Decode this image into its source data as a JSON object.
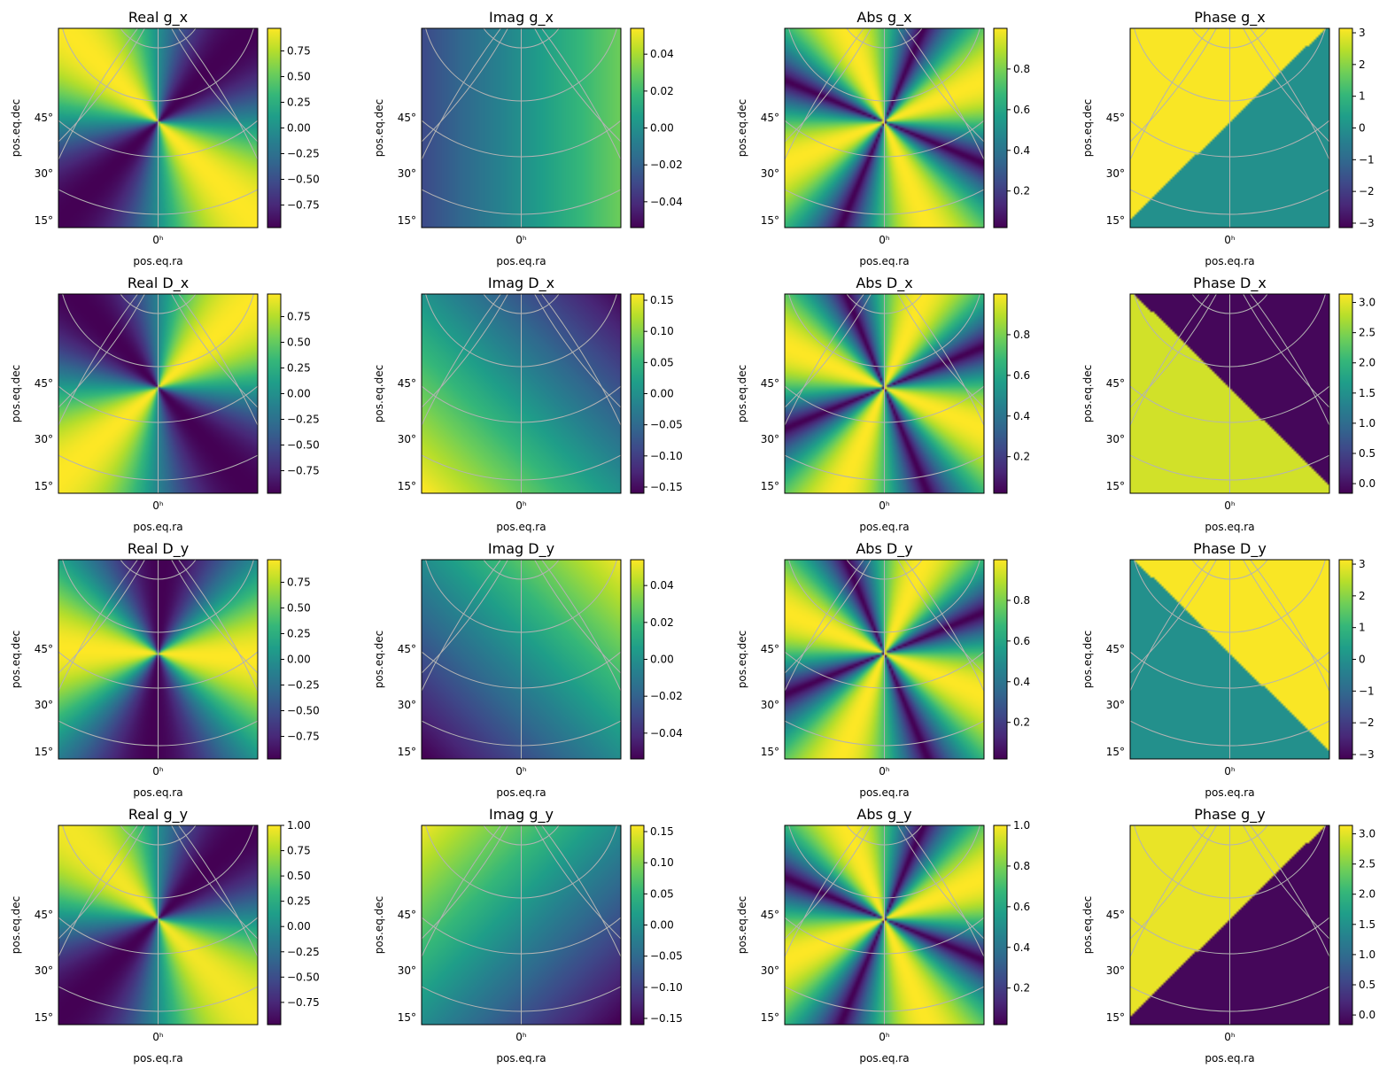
{
  "figure": {
    "layout": "4x4 grid of heatmap panels on a sky projection with colorbars",
    "colormap": "viridis",
    "colormap_stops": [
      "#440154",
      "#3b528b",
      "#21918c",
      "#5ec962",
      "#fde725"
    ],
    "grid_color": "#b3b3b3"
  },
  "chart_data": [
    {
      "type": "heatmap",
      "title": "Real g_x",
      "field": "real",
      "row": 0,
      "col": 0,
      "xlabel": "pos.eq.ra",
      "ylabel": "pos.eq.dec",
      "x_ticks": [
        "0ʰ"
      ],
      "y_ticks": [
        "45°",
        "30°",
        "15°"
      ],
      "clim": [
        -0.97,
        0.97
      ],
      "colorbar_ticks": [
        0.75,
        0.5,
        0.25,
        0.0,
        -0.25,
        -0.5,
        -0.75
      ]
    },
    {
      "type": "heatmap",
      "title": "Imag g_x",
      "field": "imag",
      "row": 0,
      "col": 1,
      "xlabel": "pos.eq.ra",
      "ylabel": "pos.eq.dec",
      "x_ticks": [
        "0ʰ"
      ],
      "y_ticks": [
        "45°",
        "30°",
        "15°"
      ],
      "clim": [
        -0.054,
        0.054
      ],
      "colorbar_ticks": [
        0.04,
        0.02,
        0.0,
        -0.02,
        -0.04
      ]
    },
    {
      "type": "heatmap",
      "title": "Abs g_x",
      "field": "abs",
      "row": 0,
      "col": 2,
      "xlabel": "pos.eq.ra",
      "ylabel": "pos.eq.dec",
      "x_ticks": [
        "0ʰ"
      ],
      "y_ticks": [
        "45°",
        "30°",
        "15°"
      ],
      "clim": [
        0.02,
        1.0
      ],
      "colorbar_ticks": [
        0.8,
        0.6,
        0.4,
        0.2
      ]
    },
    {
      "type": "heatmap",
      "title": "Phase g_x",
      "field": "phase",
      "row": 0,
      "col": 3,
      "xlabel": "pos.eq.ra",
      "ylabel": "pos.eq.dec",
      "x_ticks": [
        "0ʰ"
      ],
      "y_ticks": [
        "45°",
        "30°",
        "15°"
      ],
      "clim": [
        -3.14,
        3.14
      ],
      "colorbar_ticks": [
        3,
        2,
        1,
        0,
        -1,
        -2,
        -3
      ]
    },
    {
      "type": "heatmap",
      "title": "Real D_x",
      "field": "real",
      "row": 1,
      "col": 0,
      "xlabel": "pos.eq.ra",
      "ylabel": "pos.eq.dec",
      "x_ticks": [
        "0ʰ"
      ],
      "y_ticks": [
        "45°",
        "30°",
        "15°"
      ],
      "clim": [
        -0.97,
        0.97
      ],
      "colorbar_ticks": [
        0.75,
        0.5,
        0.25,
        0.0,
        -0.25,
        -0.5,
        -0.75
      ]
    },
    {
      "type": "heatmap",
      "title": "Imag D_x",
      "field": "imag",
      "row": 1,
      "col": 1,
      "xlabel": "pos.eq.ra",
      "ylabel": "pos.eq.dec",
      "x_ticks": [
        "0ʰ"
      ],
      "y_ticks": [
        "45°",
        "30°",
        "15°"
      ],
      "clim": [
        -0.16,
        0.16
      ],
      "colorbar_ticks": [
        0.15,
        0.1,
        0.05,
        0.0,
        -0.05,
        -0.1,
        -0.15
      ]
    },
    {
      "type": "heatmap",
      "title": "Abs D_x",
      "field": "abs",
      "row": 1,
      "col": 2,
      "xlabel": "pos.eq.ra",
      "ylabel": "pos.eq.dec",
      "x_ticks": [
        "0ʰ"
      ],
      "y_ticks": [
        "45°",
        "30°",
        "15°"
      ],
      "clim": [
        0.02,
        1.0
      ],
      "colorbar_ticks": [
        0.8,
        0.6,
        0.4,
        0.2
      ]
    },
    {
      "type": "heatmap",
      "title": "Phase D_x",
      "field": "phase",
      "row": 1,
      "col": 3,
      "xlabel": "pos.eq.ra",
      "ylabel": "pos.eq.dec",
      "x_ticks": [
        "0ʰ"
      ],
      "y_ticks": [
        "45°",
        "30°",
        "15°"
      ],
      "clim": [
        -0.16,
        3.14
      ],
      "colorbar_ticks": [
        3.0,
        2.5,
        2.0,
        1.5,
        1.0,
        0.5,
        0.0
      ]
    },
    {
      "type": "heatmap",
      "title": "Real D_y",
      "field": "real",
      "row": 2,
      "col": 0,
      "xlabel": "pos.eq.ra",
      "ylabel": "pos.eq.dec",
      "x_ticks": [
        "0ʰ"
      ],
      "y_ticks": [
        "45°",
        "30°",
        "15°"
      ],
      "clim": [
        -0.97,
        0.97
      ],
      "colorbar_ticks": [
        0.75,
        0.5,
        0.25,
        0.0,
        -0.25,
        -0.5,
        -0.75
      ]
    },
    {
      "type": "heatmap",
      "title": "Imag D_y",
      "field": "imag",
      "row": 2,
      "col": 1,
      "xlabel": "pos.eq.ra",
      "ylabel": "pos.eq.dec",
      "x_ticks": [
        "0ʰ"
      ],
      "y_ticks": [
        "45°",
        "30°",
        "15°"
      ],
      "clim": [
        -0.054,
        0.054
      ],
      "colorbar_ticks": [
        0.04,
        0.02,
        0.0,
        -0.02,
        -0.04
      ]
    },
    {
      "type": "heatmap",
      "title": "Abs D_y",
      "field": "abs",
      "row": 2,
      "col": 2,
      "xlabel": "pos.eq.ra",
      "ylabel": "pos.eq.dec",
      "x_ticks": [
        "0ʰ"
      ],
      "y_ticks": [
        "45°",
        "30°",
        "15°"
      ],
      "clim": [
        0.02,
        1.0
      ],
      "colorbar_ticks": [
        0.8,
        0.6,
        0.4,
        0.2
      ]
    },
    {
      "type": "heatmap",
      "title": "Phase D_y",
      "field": "phase",
      "row": 2,
      "col": 3,
      "xlabel": "pos.eq.ra",
      "ylabel": "pos.eq.dec",
      "x_ticks": [
        "0ʰ"
      ],
      "y_ticks": [
        "45°",
        "30°",
        "15°"
      ],
      "clim": [
        -3.14,
        3.14
      ],
      "colorbar_ticks": [
        3,
        2,
        1,
        0,
        -1,
        -2,
        -3
      ]
    },
    {
      "type": "heatmap",
      "title": "Real g_y",
      "field": "real",
      "row": 3,
      "col": 0,
      "xlabel": "pos.eq.ra",
      "ylabel": "pos.eq.dec",
      "x_ticks": [
        "0ʰ"
      ],
      "y_ticks": [
        "45°",
        "30°",
        "15°"
      ],
      "clim": [
        -0.97,
        1.0
      ],
      "colorbar_ticks": [
        1.0,
        0.75,
        0.5,
        0.25,
        0.0,
        -0.25,
        -0.5,
        -0.75
      ]
    },
    {
      "type": "heatmap",
      "title": "Imag g_y",
      "field": "imag",
      "row": 3,
      "col": 1,
      "xlabel": "pos.eq.ra",
      "ylabel": "pos.eq.dec",
      "x_ticks": [
        "0ʰ"
      ],
      "y_ticks": [
        "45°",
        "30°",
        "15°"
      ],
      "clim": [
        -0.16,
        0.16
      ],
      "colorbar_ticks": [
        0.15,
        0.1,
        0.05,
        0.0,
        -0.05,
        -0.1,
        -0.15
      ]
    },
    {
      "type": "heatmap",
      "title": "Abs g_y",
      "field": "abs",
      "row": 3,
      "col": 2,
      "xlabel": "pos.eq.ra",
      "ylabel": "pos.eq.dec",
      "x_ticks": [
        "0ʰ"
      ],
      "y_ticks": [
        "45°",
        "30°",
        "15°"
      ],
      "clim": [
        0.02,
        1.0
      ],
      "colorbar_ticks": [
        1.0,
        0.8,
        0.6,
        0.4,
        0.2
      ]
    },
    {
      "type": "heatmap",
      "title": "Phase g_y",
      "field": "phase",
      "row": 3,
      "col": 3,
      "xlabel": "pos.eq.ra",
      "ylabel": "pos.eq.dec",
      "x_ticks": [
        "0ʰ"
      ],
      "y_ticks": [
        "45°",
        "30°",
        "15°"
      ],
      "clim": [
        -0.16,
        3.14
      ],
      "colorbar_ticks": [
        3.0,
        2.5,
        2.0,
        1.5,
        1.0,
        0.5,
        0.0
      ]
    }
  ]
}
